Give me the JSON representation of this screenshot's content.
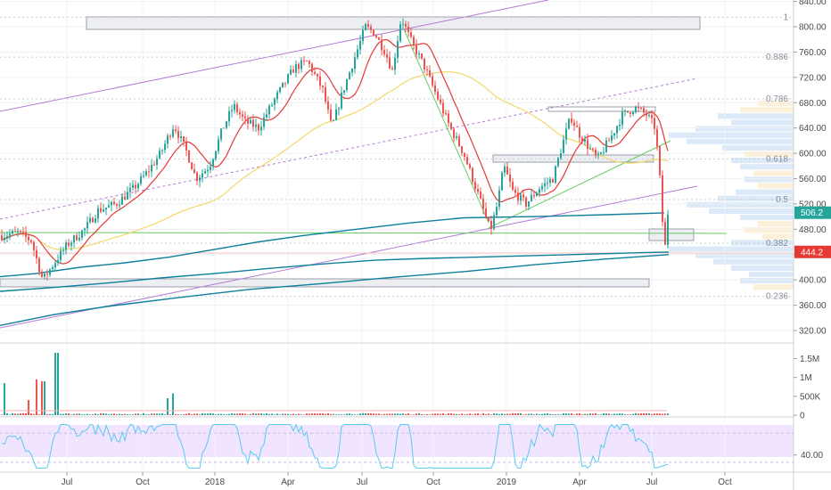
{
  "chart_data": {
    "type": "candlestick",
    "colors": {
      "up": "#26a69a",
      "down": "#ef5350",
      "ma_fast": "#e53935",
      "ma_slow": "#f2d86b",
      "vwap": "#0e7f9a",
      "channel": "#b57bd6",
      "trend_green": "#66cc66",
      "rsi": "#55ccee",
      "rsi_band": "#f1e4ff",
      "badge_price": "#26a69a",
      "badge_last": "#e53935",
      "volume_profile": "#dbe9f8",
      "volume_profile_warm": "#fdf0d8"
    },
    "price_axis": {
      "ticks": [
        "840.00",
        "800.00",
        "760.00",
        "720.00",
        "680.00",
        "640.00",
        "600.00",
        "560.00",
        "520.00",
        "480.00",
        "440.00",
        "400.00",
        "360.00",
        "320.00"
      ],
      "range": [
        310,
        845
      ]
    },
    "time_axis": {
      "labels": [
        "Jul",
        "Oct",
        "2018",
        "Apr",
        "Jul",
        "Oct",
        "2019",
        "Apr",
        "Jul",
        "Oct"
      ]
    },
    "fib_levels": [
      {
        "label": "1",
        "value": 815
      },
      {
        "label": "0.886",
        "value": 752
      },
      {
        "label": "0.786",
        "value": 686
      },
      {
        "label": "0.618",
        "value": 591
      },
      {
        "label": "0.5",
        "value": 527
      },
      {
        "label": "0.382",
        "value": 458
      },
      {
        "label": "0.236",
        "value": 374
      }
    ],
    "badges": {
      "price": "506.2",
      "last": "444.2"
    },
    "key_points": {
      "start_close": 470,
      "high_2018": 815,
      "low_2018_dec": 470,
      "high_2019_jun": 672,
      "last_low": 444.2,
      "last_close": 506.2
    },
    "volume_axis": {
      "ticks": [
        "1.5M",
        "1M",
        "500K",
        "0"
      ]
    },
    "rsi_axis": {
      "ticks": [
        "40.00"
      ]
    }
  }
}
